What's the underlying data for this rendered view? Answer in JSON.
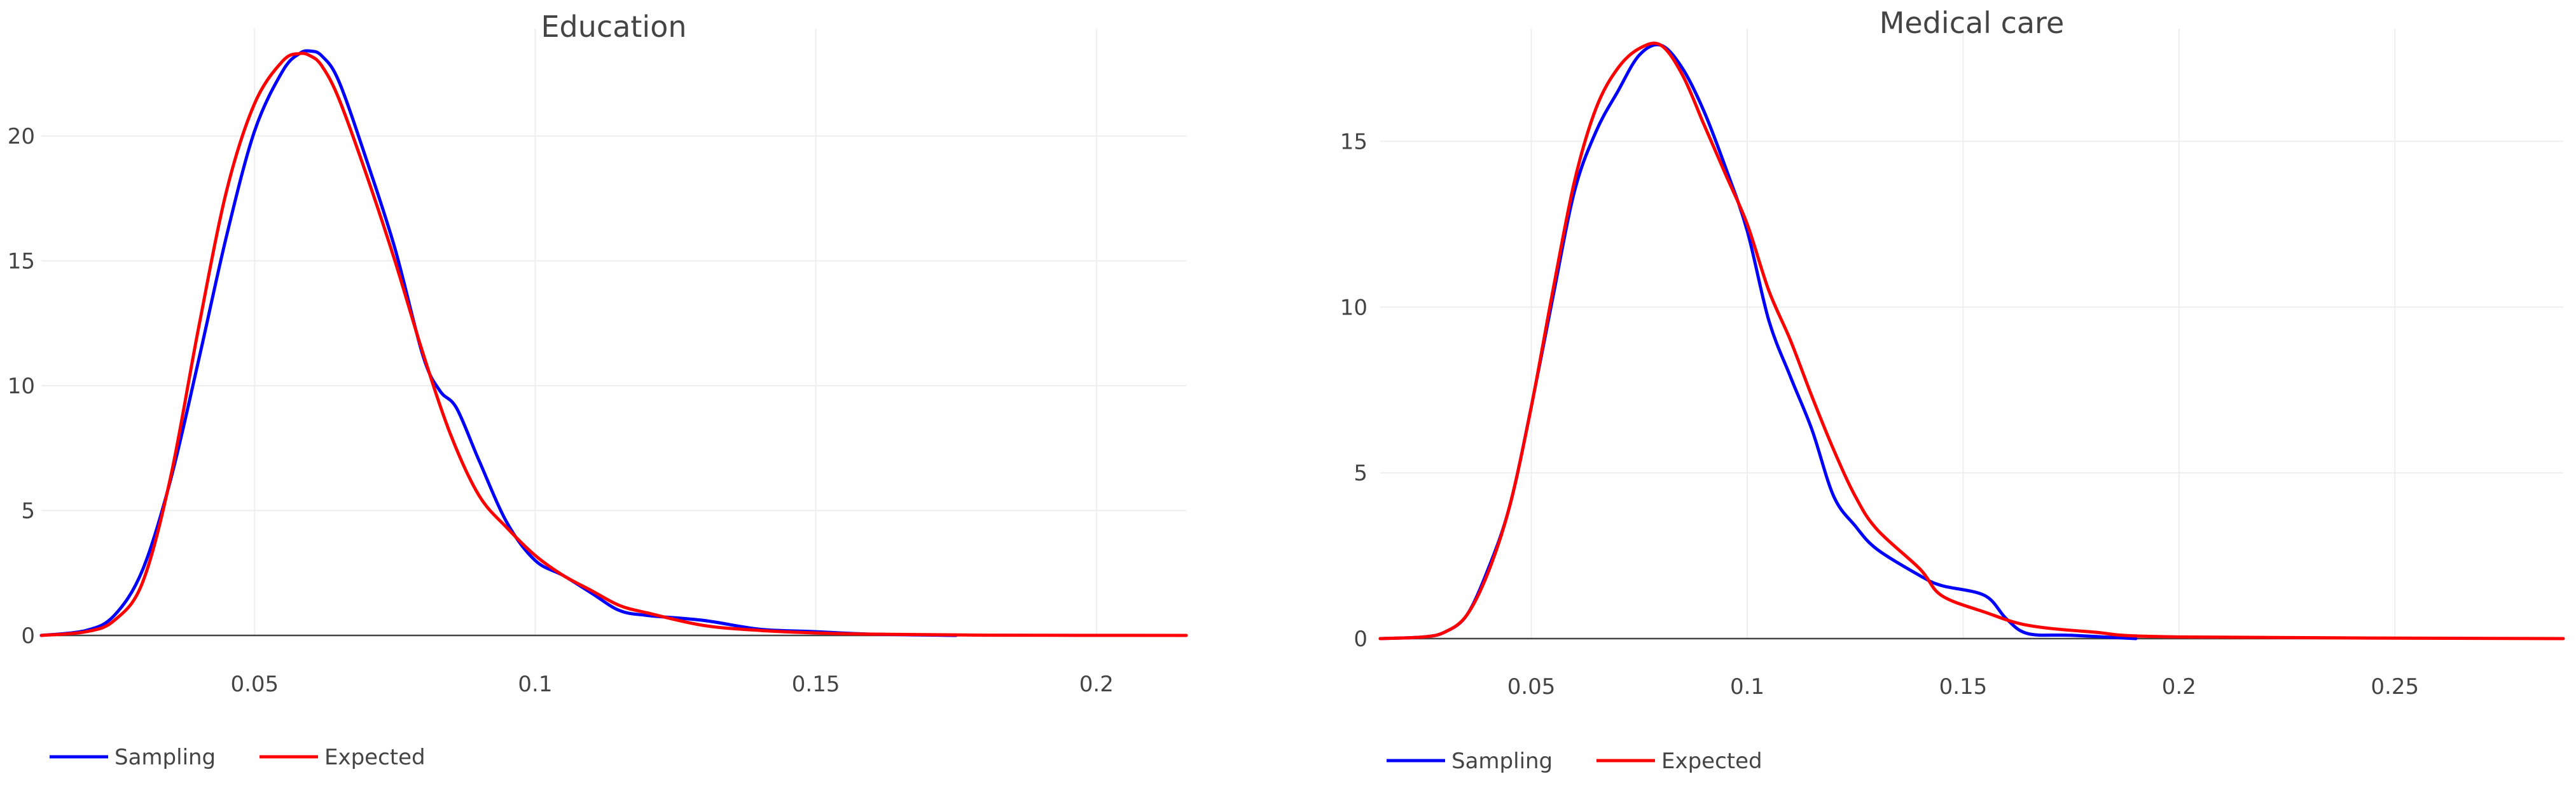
{
  "chart_data": [
    {
      "type": "line",
      "title": "Education",
      "xlabel": "",
      "ylabel": "",
      "xlim": [
        0.012,
        0.216
      ],
      "ylim": [
        0,
        24.3
      ],
      "xticks": [
        0.05,
        0.1,
        0.15,
        0.2
      ],
      "xtick_labels": [
        "0.05",
        "0.1",
        "0.15",
        "0.2"
      ],
      "yticks": [
        0,
        5,
        10,
        15,
        20
      ],
      "ytick_labels": [
        "0",
        "5",
        "10",
        "15",
        "20"
      ],
      "grid": true,
      "legend": "bottom-left",
      "series": [
        {
          "name": "Sampling",
          "color": "#0000ff",
          "x": [
            0.012,
            0.02,
            0.025,
            0.03,
            0.035,
            0.04,
            0.045,
            0.05,
            0.055,
            0.058,
            0.06,
            0.062,
            0.065,
            0.07,
            0.075,
            0.08,
            0.083,
            0.086,
            0.09,
            0.095,
            0.1,
            0.105,
            0.11,
            0.115,
            0.12,
            0.13,
            0.14,
            0.15,
            0.16,
            0.175
          ],
          "y": [
            0.0,
            0.2,
            0.8,
            2.6,
            6.2,
            11.0,
            16.0,
            20.2,
            22.6,
            23.3,
            23.4,
            23.2,
            22.2,
            19.0,
            15.5,
            11.2,
            9.8,
            9.1,
            7.0,
            4.5,
            3.0,
            2.4,
            1.7,
            1.0,
            0.8,
            0.6,
            0.25,
            0.15,
            0.05,
            0.0
          ]
        },
        {
          "name": "Expected",
          "color": "#ff0000",
          "x": [
            0.012,
            0.02,
            0.025,
            0.03,
            0.035,
            0.04,
            0.045,
            0.05,
            0.055,
            0.058,
            0.06,
            0.062,
            0.065,
            0.07,
            0.075,
            0.08,
            0.085,
            0.09,
            0.095,
            0.1,
            0.105,
            0.11,
            0.115,
            0.12,
            0.13,
            0.14,
            0.15,
            0.16,
            0.18,
            0.216
          ],
          "y": [
            0.0,
            0.15,
            0.6,
            2.1,
            6.3,
            12.3,
            17.8,
            21.3,
            23.0,
            23.3,
            23.2,
            22.8,
            21.5,
            18.4,
            15.0,
            11.3,
            8.0,
            5.6,
            4.3,
            3.2,
            2.4,
            1.8,
            1.2,
            0.9,
            0.4,
            0.2,
            0.1,
            0.05,
            0.01,
            0.0
          ]
        }
      ]
    },
    {
      "type": "line",
      "title": "Medical care",
      "xlabel": "",
      "ylabel": "",
      "xlim": [
        0.015,
        0.289
      ],
      "ylim": [
        0,
        18.4
      ],
      "xticks": [
        0.05,
        0.1,
        0.15,
        0.2,
        0.25
      ],
      "xtick_labels": [
        "0.05",
        "0.1",
        "0.15",
        "0.2",
        "0.25"
      ],
      "yticks": [
        0,
        5,
        10,
        15
      ],
      "ytick_labels": [
        "0",
        "5",
        "10",
        "15"
      ],
      "grid": true,
      "legend": "bottom-left",
      "series": [
        {
          "name": "Sampling",
          "color": "#0000ff",
          "x": [
            0.015,
            0.025,
            0.03,
            0.035,
            0.04,
            0.045,
            0.05,
            0.055,
            0.06,
            0.065,
            0.07,
            0.075,
            0.08,
            0.085,
            0.09,
            0.095,
            0.1,
            0.105,
            0.11,
            0.115,
            0.12,
            0.125,
            0.13,
            0.14,
            0.145,
            0.155,
            0.16,
            0.165,
            0.175,
            0.19
          ],
          "y": [
            0.0,
            0.05,
            0.2,
            0.7,
            2.1,
            4.0,
            7.0,
            10.3,
            13.5,
            15.3,
            16.5,
            17.6,
            17.9,
            17.2,
            15.9,
            14.2,
            12.3,
            9.6,
            7.9,
            6.3,
            4.3,
            3.4,
            2.7,
            1.9,
            1.6,
            1.3,
            0.6,
            0.15,
            0.1,
            0.0
          ]
        },
        {
          "name": "Expected",
          "color": "#ff0000",
          "x": [
            0.015,
            0.025,
            0.03,
            0.035,
            0.04,
            0.045,
            0.05,
            0.055,
            0.06,
            0.065,
            0.07,
            0.075,
            0.08,
            0.085,
            0.09,
            0.095,
            0.1,
            0.105,
            0.11,
            0.115,
            0.12,
            0.125,
            0.13,
            0.14,
            0.145,
            0.155,
            0.165,
            0.18,
            0.2,
            0.289
          ],
          "y": [
            0.0,
            0.05,
            0.2,
            0.7,
            2.0,
            4.0,
            7.0,
            10.5,
            13.8,
            16.0,
            17.2,
            17.8,
            17.9,
            17.0,
            15.5,
            14.0,
            12.5,
            10.5,
            9.0,
            7.3,
            5.7,
            4.3,
            3.3,
            2.1,
            1.3,
            0.8,
            0.4,
            0.2,
            0.05,
            0.0
          ]
        }
      ]
    }
  ]
}
